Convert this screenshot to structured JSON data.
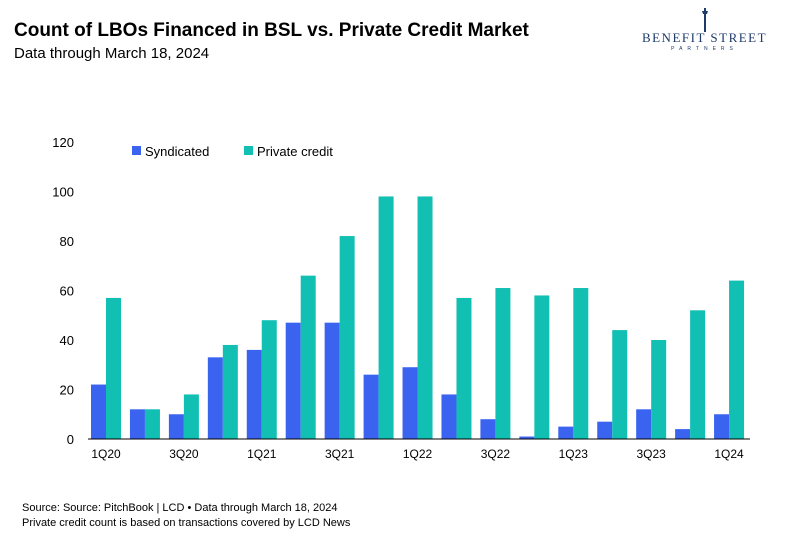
{
  "header": {
    "title": "Count of LBOs Financed in BSL vs. Private Credit Market",
    "subtitle": "Data through March 18, 2024"
  },
  "logo": {
    "line1": "BENEFIT STREET",
    "line2": "PARTNERS",
    "color": "#1d3a6b"
  },
  "footer": {
    "source": "Source: Source: PitchBook | LCD • Data through March 18, 2024",
    "note": "Private credit count is based on transactions covered by LCD News"
  },
  "chart_data": {
    "type": "bar",
    "categories": [
      "1Q20",
      "2Q20",
      "3Q20",
      "4Q20",
      "1Q21",
      "2Q21",
      "3Q21",
      "4Q21",
      "1Q22",
      "2Q22",
      "3Q22",
      "4Q22",
      "1Q23",
      "2Q23",
      "3Q23",
      "4Q23",
      "1Q24"
    ],
    "x_tick_labels": [
      "1Q20",
      "3Q20",
      "1Q21",
      "3Q21",
      "1Q22",
      "3Q22",
      "1Q23",
      "3Q23",
      "1Q24"
    ],
    "series": [
      {
        "name": "Syndicated",
        "color": "#3a63f0",
        "values": [
          22,
          12,
          10,
          33,
          36,
          47,
          47,
          26,
          29,
          18,
          8,
          1,
          5,
          7,
          12,
          4,
          10
        ]
      },
      {
        "name": "Private credit",
        "color": "#12bfb3",
        "values": [
          57,
          12,
          18,
          38,
          48,
          66,
          82,
          98,
          98,
          57,
          61,
          58,
          61,
          44,
          40,
          52,
          64
        ]
      }
    ],
    "ylim": [
      0,
      120
    ],
    "yticks": [
      0,
      20,
      40,
      60,
      80,
      100,
      120
    ],
    "grid": false,
    "legend_position": "top-left"
  }
}
